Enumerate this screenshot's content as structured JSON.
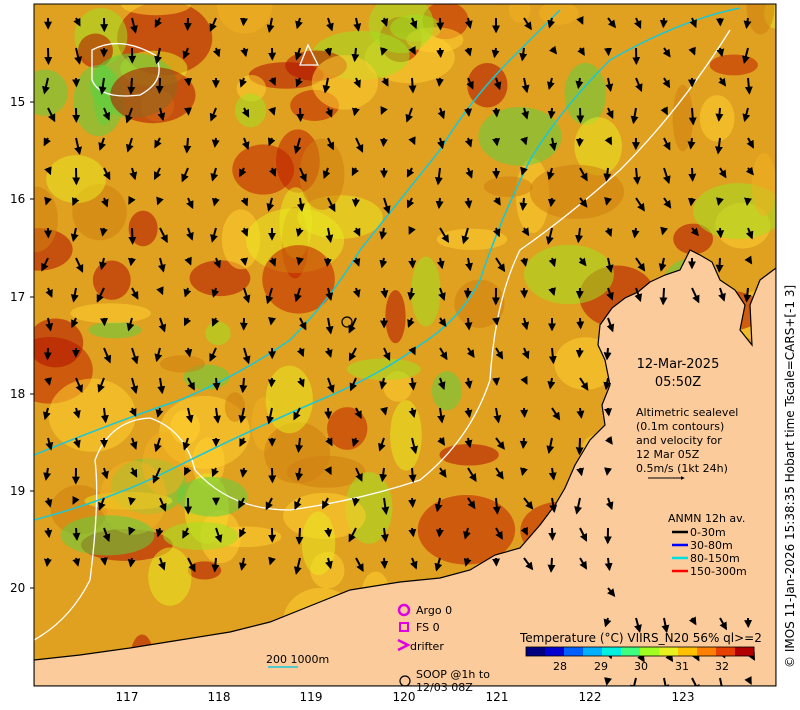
{
  "map": {
    "lat_ticks": [
      "15",
      "16",
      "17",
      "18",
      "19",
      "20"
    ],
    "lon_ticks": [
      "117",
      "118",
      "119",
      "120",
      "121",
      "122",
      "123"
    ],
    "land_color": "#fccb9b",
    "coast_color": "#000000",
    "contour_color": "#ffffff",
    "isobath_color": "#19c8d8"
  },
  "annotations": {
    "date": "12-Mar-2025",
    "time": "05:50Z",
    "altimetry_text": [
      "Altimetric sealevel",
      "(0.1m contours)",
      "and velocity for",
      "12 Mar 05Z",
      "0.5m/s (1kt 24h)"
    ],
    "anmn_title": "ANMN 12h av.",
    "anmn_items": [
      {
        "label": "0-30m",
        "color": "#000000"
      },
      {
        "label": "30-80m",
        "color": "#0000ff"
      },
      {
        "label": "80-150m",
        "color": "#00e0e0"
      },
      {
        "label": "150-300m",
        "color": "#ff0000"
      }
    ],
    "argo": "Argo 0",
    "fs": "FS 0",
    "drifter": "drifter",
    "soop": [
      "SOOP @1h to",
      "12/03 08Z"
    ],
    "isobath_label": "200  1000m",
    "side_caption": "© IMOS 11-Jan-2026 15:38:35 Hobart time Tscale=CARS+[-1 3]"
  },
  "colorbar": {
    "title": "Temperature (°C) VIIRS_N20 56% ql>=2",
    "ticks": [
      "28",
      "29",
      "30",
      "31",
      "32"
    ],
    "range": [
      27.2,
      32.8
    ],
    "colors": [
      "#000080",
      "#0000d0",
      "#0060ff",
      "#00b0ff",
      "#00f0e0",
      "#40ff80",
      "#a0ff20",
      "#e8f020",
      "#ffc000",
      "#ff8000",
      "#e84000",
      "#b00000"
    ]
  }
}
